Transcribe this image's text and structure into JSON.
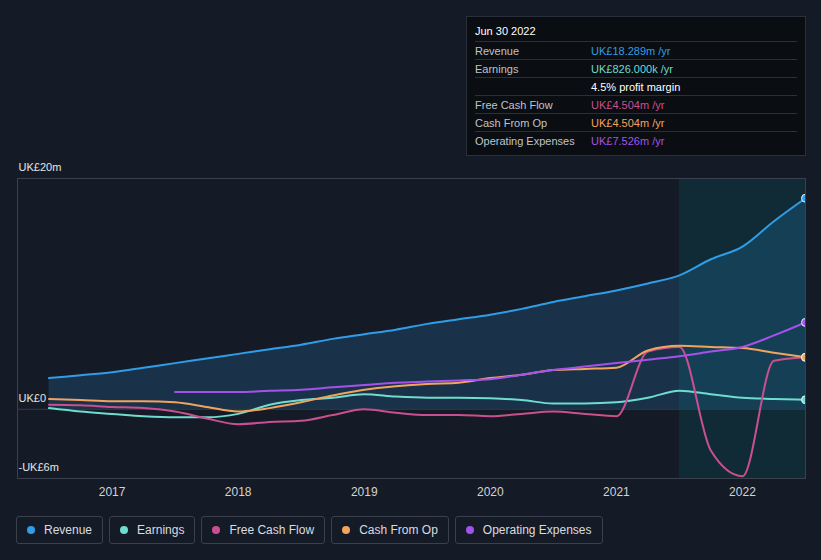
{
  "chart_data": {
    "type": "line",
    "x": [
      2016.5,
      2016.75,
      2017,
      2017.25,
      2017.5,
      2017.75,
      2018,
      2018.25,
      2018.5,
      2018.75,
      2019,
      2019.25,
      2019.5,
      2019.75,
      2020,
      2020.25,
      2020.5,
      2020.75,
      2021,
      2021.25,
      2021.5,
      2021.75,
      2022,
      2022.25,
      2022.5
    ],
    "xlim": [
      2016.25,
      2022.5
    ],
    "xticks": [
      2017,
      2018,
      2019,
      2020,
      2021,
      2022
    ],
    "ylim": [
      -6,
      20
    ],
    "yticks": [
      {
        "value": -6,
        "label": "-UK£6m"
      },
      {
        "value": 0,
        "label": "UK£0"
      },
      {
        "value": 20,
        "label": "UK£20m"
      }
    ],
    "grid": true,
    "legend": "bottom",
    "shaded_range": [
      2021.5,
      2022.5
    ],
    "series": [
      {
        "name": "Revenue",
        "color": "#2f9de8",
        "type": "area",
        "values": [
          2.7,
          2.95,
          3.2,
          3.6,
          4.0,
          4.4,
          4.8,
          5.2,
          5.6,
          6.1,
          6.5,
          6.9,
          7.4,
          7.8,
          8.2,
          8.7,
          9.3,
          9.8,
          10.3,
          10.9,
          11.6,
          13.0,
          14.1,
          16.3,
          18.289
        ]
      },
      {
        "name": "Earnings",
        "color": "#6fdccd",
        "type": "line",
        "values": [
          0.1,
          -0.2,
          -0.4,
          -0.6,
          -0.7,
          -0.7,
          -0.4,
          0.4,
          0.8,
          1.0,
          1.3,
          1.1,
          1.0,
          1.0,
          0.95,
          0.8,
          0.5,
          0.5,
          0.6,
          1.0,
          1.6,
          1.3,
          1.0,
          0.9,
          0.826
        ]
      },
      {
        "name": "Free Cash Flow",
        "color": "#c9508f",
        "type": "line",
        "values": [
          0.4,
          0.35,
          0.2,
          0.1,
          -0.2,
          -0.8,
          -1.3,
          -1.1,
          -1.0,
          -0.5,
          0,
          -0.3,
          -0.5,
          -0.5,
          -0.6,
          -0.4,
          -0.2,
          -0.4,
          -0.6,
          5.0,
          5.4,
          -3.6,
          -5.8,
          4.2,
          4.504
        ]
      },
      {
        "name": "Cash From Op",
        "color": "#f2a45f",
        "type": "line",
        "values": [
          0.9,
          0.8,
          0.7,
          0.7,
          0.6,
          0.2,
          -0.2,
          0.1,
          0.6,
          1.2,
          1.7,
          2.0,
          2.2,
          2.3,
          2.7,
          3.0,
          3.4,
          3.5,
          3.6,
          5.1,
          5.5,
          5.4,
          5.3,
          4.9,
          4.504
        ]
      },
      {
        "name": "Operating Expenses",
        "color": "#a552ea",
        "type": "line",
        "values": [
          null,
          null,
          null,
          null,
          1.5,
          1.5,
          1.5,
          1.6,
          1.7,
          1.9,
          2.1,
          2.3,
          2.4,
          2.5,
          2.6,
          3.0,
          3.4,
          3.7,
          4.0,
          4.3,
          4.6,
          5.0,
          5.4,
          6.4,
          7.526
        ]
      }
    ],
    "tooltip": {
      "title": "Jun 30 2022",
      "rows": [
        {
          "label": "Revenue",
          "value": "UK£18.289m /yr"
        },
        {
          "label": "Earnings",
          "value": "UK£826.000k /yr"
        },
        {
          "value": "4.5% profit margin"
        },
        {
          "label": "Free Cash Flow",
          "value": "UK£4.504m /yr"
        },
        {
          "label": "Cash From Op",
          "value": "UK£4.504m /yr"
        },
        {
          "label": "Operating Expenses",
          "value": "UK£7.526m /yr"
        }
      ]
    }
  }
}
